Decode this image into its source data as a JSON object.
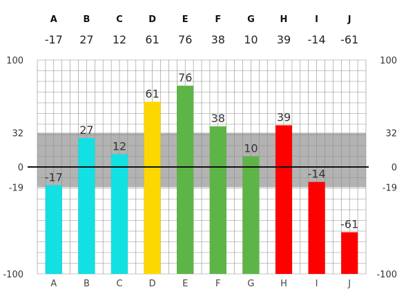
{
  "chart_data": {
    "type": "bar",
    "categories": [
      "A",
      "B",
      "C",
      "D",
      "E",
      "F",
      "G",
      "H",
      "I",
      "J"
    ],
    "values": [
      -17,
      27,
      12,
      61,
      76,
      38,
      10,
      39,
      -14,
      -61
    ],
    "bar_colors": [
      "#12e0e3",
      "#12e0e3",
      "#12e0e3",
      "#ffd700",
      "#5db547",
      "#5db547",
      "#5db547",
      "#ff0000",
      "#ff0000",
      "#ff0000"
    ],
    "ylim": [
      -100,
      100
    ],
    "ytick_labels": [
      {
        "value": 100,
        "label": "100"
      },
      {
        "value": 32,
        "label": "32"
      },
      {
        "value": 0,
        "label": "0"
      },
      {
        "value": -19,
        "label": "-19"
      },
      {
        "value": -100,
        "label": "-100"
      }
    ],
    "band": {
      "from": -19,
      "to": 32,
      "color": "#b3b3b3"
    },
    "zero_line": true,
    "grid": true,
    "minor_grid_step": 10,
    "title": "",
    "xlabel": "",
    "ylabel": ""
  }
}
